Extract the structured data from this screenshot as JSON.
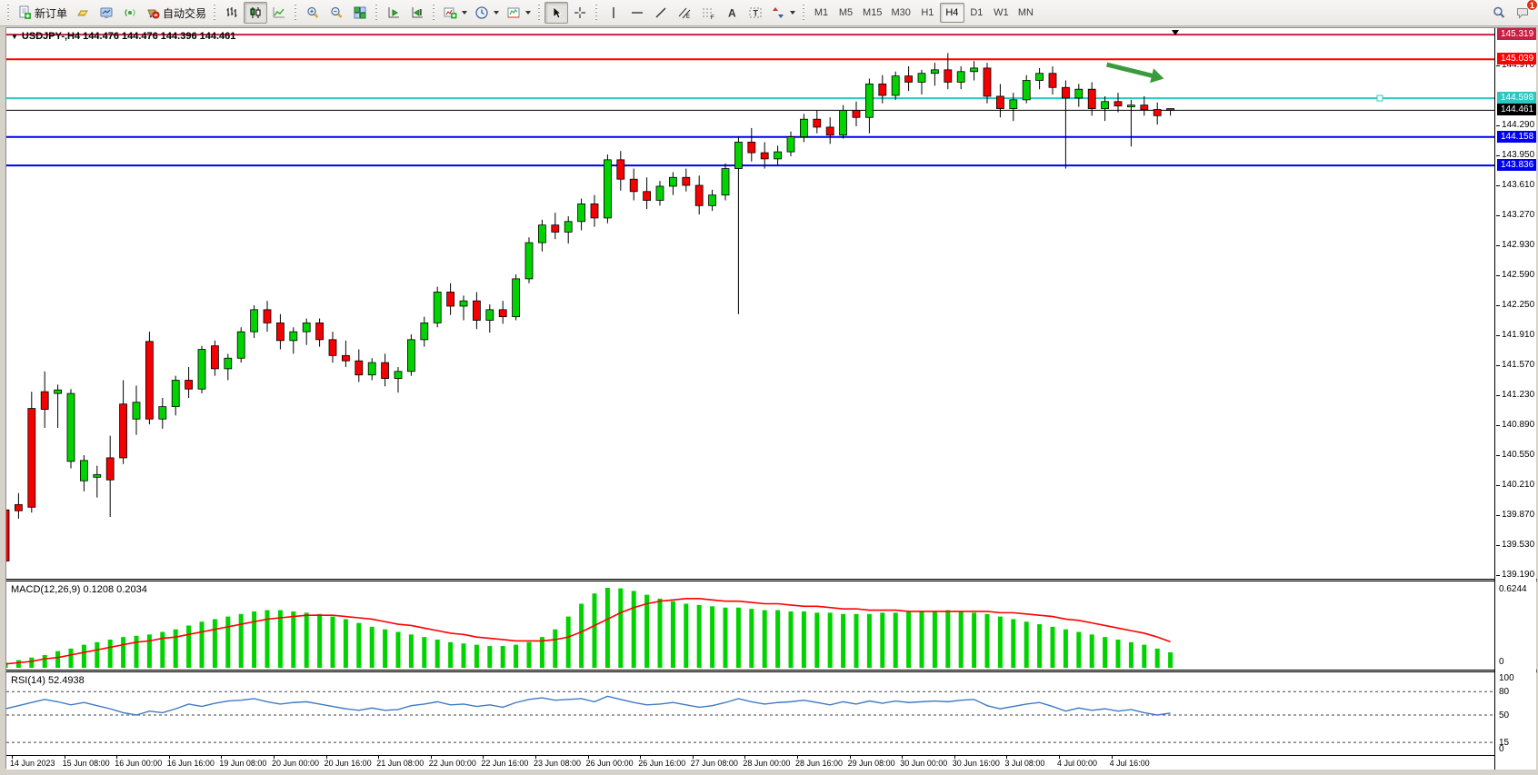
{
  "toolbar": {
    "groups": [
      {
        "name": "trade",
        "items": [
          {
            "icon": "new-order-icon",
            "name": "new-order-button",
            "label": "新订单"
          },
          {
            "icon": "gold-icon",
            "name": "gold-button"
          },
          {
            "icon": "market-watch-icon",
            "name": "market-watch-button"
          },
          {
            "icon": "signals-icon",
            "name": "signals-button"
          },
          {
            "icon": "auto-trading-icon",
            "name": "auto-trading-button",
            "label": "自动交易"
          }
        ]
      },
      {
        "name": "chart-type",
        "items": [
          {
            "icon": "bar-chart-icon",
            "name": "bar-chart-button"
          },
          {
            "icon": "candlestick-icon",
            "name": "candlestick-button",
            "active": true
          },
          {
            "icon": "line-chart-icon",
            "name": "line-chart-button"
          }
        ]
      },
      {
        "name": "zoom",
        "items": [
          {
            "icon": "zoom-in-icon",
            "name": "zoom-in-button"
          },
          {
            "icon": "zoom-out-icon",
            "name": "zoom-out-button"
          },
          {
            "icon": "tile-windows-icon",
            "name": "tile-windows-button"
          }
        ]
      },
      {
        "name": "scroll",
        "items": [
          {
            "icon": "auto-scroll-icon",
            "name": "auto-scroll-button"
          },
          {
            "icon": "chart-shift-icon",
            "name": "chart-shift-button"
          }
        ]
      },
      {
        "name": "new-objects",
        "items": [
          {
            "icon": "new-chart-icon",
            "name": "new-chart-dropdown",
            "dropdown": true
          },
          {
            "icon": "periods-icon",
            "name": "periods-dropdown",
            "dropdown": true
          },
          {
            "icon": "templates-icon",
            "name": "templates-dropdown",
            "dropdown": true
          }
        ]
      },
      {
        "name": "cursor-tools",
        "items": [
          {
            "icon": "cursor-icon",
            "name": "cursor-button",
            "active": true
          },
          {
            "icon": "crosshair-icon",
            "name": "crosshair-button"
          }
        ]
      },
      {
        "name": "draw-tools",
        "items": [
          {
            "icon": "vertical-line-icon",
            "name": "vertical-line-button"
          },
          {
            "icon": "horizontal-line-icon",
            "name": "horizontal-line-button"
          },
          {
            "icon": "trendline-icon",
            "name": "trendline-button"
          },
          {
            "icon": "channel-icon",
            "name": "equidistant-channel-button"
          },
          {
            "icon": "fibonacci-icon",
            "name": "fibonacci-button"
          },
          {
            "icon": "text-icon",
            "name": "text-button"
          },
          {
            "icon": "text-label-icon",
            "name": "text-label-button"
          },
          {
            "icon": "arrows-icon",
            "name": "arrows-dropdown",
            "dropdown": true
          }
        ]
      },
      {
        "name": "timeframes",
        "timeframe_buttons": [
          "M1",
          "M5",
          "M15",
          "M30",
          "H1",
          "H4",
          "D1",
          "W1",
          "MN"
        ],
        "active_timeframe": "H4"
      }
    ],
    "right_items": [
      {
        "icon": "search-icon",
        "name": "search-button"
      },
      {
        "icon": "chat-icon",
        "name": "notifications-button",
        "badge": "1"
      }
    ]
  },
  "chart": {
    "title": "USDJPY-,H4  144.476 144.476 144.396 144.461",
    "symbol": "USDJPY-",
    "timeframe": "H4",
    "open": "144.476",
    "high": "144.476",
    "low": "144.396",
    "close": "144.461",
    "macd_label": "MACD(12,26,9) 0.1208 0.2034",
    "rsi_label": "RSI(14) 52.4938",
    "macd_scale_top": "0.6244",
    "macd_scale_zero": "0",
    "colors": {
      "bull": "#00d300",
      "bear": "#f50000",
      "wick": "#000000",
      "line_crimson": "#c82044",
      "line_red": "#ff0000",
      "line_cyan": "#2cc7c3",
      "line_blue": "#0000f0",
      "line_black": "#000000",
      "macd_hist": "#00d300",
      "macd_signal": "#ff0000",
      "rsi_line": "#3e7bc4",
      "arrow_object": "#3a9b3c"
    }
  },
  "chart_data": {
    "type": "candlestick",
    "title": "USDJPY-,H4  144.476 144.476 144.396 144.461",
    "symbol": "USDJPY-",
    "period": "H4",
    "last_ohlc": {
      "open": 144.476,
      "high": 144.476,
      "low": 144.396,
      "close": 144.461
    },
    "y_axis": {
      "range": [
        139.05,
        145.4
      ],
      "tick_step": 0.34,
      "ticks": [
        "144.970",
        "144.290",
        "143.950",
        "143.610",
        "143.270",
        "142.930",
        "142.590",
        "142.250",
        "141.910",
        "141.570",
        "141.230",
        "140.890",
        "140.550",
        "140.210",
        "139.870",
        "139.530",
        "139.190"
      ],
      "tick_values": [
        144.97,
        144.29,
        143.95,
        143.61,
        143.27,
        142.93,
        142.59,
        142.25,
        141.91,
        141.57,
        141.23,
        140.89,
        140.55,
        140.21,
        139.87,
        139.53,
        139.19
      ]
    },
    "x_axis": {
      "labels": [
        "14 Jun 2023",
        "15 Jun 08:00",
        "16 Jun 00:00",
        "16 Jun 16:00",
        "19 Jun 08:00",
        "20 Jun 00:00",
        "20 Jun 16:00",
        "21 Jun 08:00",
        "22 Jun 00:00",
        "22 Jun 16:00",
        "23 Jun 08:00",
        "26 Jun 00:00",
        "26 Jun 16:00",
        "27 Jun 08:00",
        "28 Jun 00:00",
        "28 Jun 16:00",
        "29 Jun 08:00",
        "30 Jun 00:00",
        "30 Jun 16:00",
        "3 Jul 08:00",
        "4 Jul 00:00",
        "4 Jul 16:00"
      ]
    },
    "horizontal_lines": [
      {
        "price": 145.319,
        "label": "145.319",
        "color": "#c82044",
        "width": 2
      },
      {
        "price": 145.039,
        "label": "145.039",
        "color": "#ff0000",
        "width": 2
      },
      {
        "price": 144.598,
        "label": "144.598",
        "color": "#2cc7c3",
        "width": 2,
        "selected": true
      },
      {
        "price": 144.461,
        "label": "144.461",
        "color": "#000000",
        "width": 1,
        "current": true
      },
      {
        "price": 144.158,
        "label": "144.158",
        "color": "#0000f0",
        "width": 2
      },
      {
        "price": 143.836,
        "label": "143.836",
        "color": "#0000f0",
        "width": 2
      }
    ],
    "arrow_object": {
      "x1_bar": 84,
      "price1": 144.98,
      "x2_bar": 88.5,
      "price2": 144.82
    },
    "candles": [
      [
        139.93,
        140.05,
        139.28,
        139.35
      ],
      [
        139.99,
        140.12,
        139.83,
        139.92
      ],
      [
        141.08,
        141.27,
        139.9,
        139.96
      ],
      [
        141.27,
        141.5,
        140.86,
        141.07
      ],
      [
        141.25,
        141.35,
        140.86,
        141.29
      ],
      [
        140.48,
        141.3,
        140.4,
        141.25
      ],
      [
        140.26,
        140.55,
        140.14,
        140.49
      ],
      [
        140.3,
        140.43,
        140.07,
        140.33
      ],
      [
        140.52,
        140.77,
        139.85,
        140.27
      ],
      [
        141.13,
        141.4,
        140.45,
        140.52
      ],
      [
        140.96,
        141.34,
        140.78,
        141.15
      ],
      [
        141.84,
        141.95,
        140.9,
        140.96
      ],
      [
        140.96,
        141.2,
        140.85,
        141.1
      ],
      [
        141.1,
        141.45,
        141.0,
        141.4
      ],
      [
        141.4,
        141.55,
        141.2,
        141.3
      ],
      [
        141.3,
        141.79,
        141.25,
        141.75
      ],
      [
        141.79,
        141.85,
        141.45,
        141.53
      ],
      [
        141.53,
        141.7,
        141.4,
        141.65
      ],
      [
        141.65,
        142.0,
        141.6,
        141.95
      ],
      [
        141.95,
        142.25,
        141.88,
        142.2
      ],
      [
        142.2,
        142.3,
        141.95,
        142.05
      ],
      [
        142.05,
        142.15,
        141.75,
        141.85
      ],
      [
        141.85,
        142.0,
        141.7,
        141.95
      ],
      [
        141.95,
        142.1,
        141.8,
        142.05
      ],
      [
        142.05,
        142.1,
        141.78,
        141.86
      ],
      [
        141.86,
        141.95,
        141.6,
        141.68
      ],
      [
        141.68,
        141.85,
        141.55,
        141.62
      ],
      [
        141.62,
        141.75,
        141.38,
        141.46
      ],
      [
        141.46,
        141.65,
        141.4,
        141.6
      ],
      [
        141.6,
        141.7,
        141.33,
        141.42
      ],
      [
        141.42,
        141.55,
        141.26,
        141.5
      ],
      [
        141.5,
        141.92,
        141.45,
        141.86
      ],
      [
        141.86,
        142.12,
        141.78,
        142.05
      ],
      [
        142.05,
        142.46,
        142.0,
        142.4
      ],
      [
        142.4,
        142.5,
        142.14,
        142.24
      ],
      [
        142.24,
        142.36,
        142.08,
        142.3
      ],
      [
        142.3,
        142.4,
        141.98,
        142.08
      ],
      [
        142.08,
        142.26,
        141.94,
        142.2
      ],
      [
        142.2,
        142.3,
        142.04,
        142.12
      ],
      [
        142.12,
        142.6,
        142.08,
        142.55
      ],
      [
        142.55,
        143.02,
        142.5,
        142.96
      ],
      [
        142.96,
        143.22,
        142.86,
        143.16
      ],
      [
        143.16,
        143.3,
        143.0,
        143.08
      ],
      [
        143.08,
        143.26,
        142.95,
        143.2
      ],
      [
        143.2,
        143.46,
        143.1,
        143.4
      ],
      [
        143.4,
        143.5,
        143.14,
        143.24
      ],
      [
        143.24,
        143.96,
        143.18,
        143.9
      ],
      [
        143.9,
        144.0,
        143.55,
        143.68
      ],
      [
        143.68,
        143.8,
        143.44,
        143.54
      ],
      [
        143.54,
        143.7,
        143.34,
        143.44
      ],
      [
        143.44,
        143.66,
        143.38,
        143.6
      ],
      [
        143.6,
        143.76,
        143.5,
        143.7
      ],
      [
        143.7,
        143.8,
        143.54,
        143.61
      ],
      [
        143.61,
        143.72,
        143.28,
        143.38
      ],
      [
        143.38,
        143.56,
        143.32,
        143.5
      ],
      [
        143.5,
        143.86,
        143.44,
        143.8
      ],
      [
        143.8,
        144.16,
        142.15,
        144.1
      ],
      [
        144.1,
        144.26,
        143.88,
        143.98
      ],
      [
        143.98,
        144.1,
        143.8,
        143.91
      ],
      [
        143.91,
        144.06,
        143.84,
        143.99
      ],
      [
        143.99,
        144.22,
        143.94,
        144.16
      ],
      [
        144.16,
        144.42,
        144.1,
        144.36
      ],
      [
        144.36,
        144.46,
        144.2,
        144.27
      ],
      [
        144.27,
        144.38,
        144.08,
        144.18
      ],
      [
        144.18,
        144.52,
        144.14,
        144.46
      ],
      [
        144.46,
        144.56,
        144.28,
        144.38
      ],
      [
        144.38,
        144.82,
        144.2,
        144.76
      ],
      [
        144.76,
        144.86,
        144.54,
        144.63
      ],
      [
        144.63,
        144.9,
        144.58,
        144.85
      ],
      [
        144.85,
        144.96,
        144.68,
        144.78
      ],
      [
        144.78,
        144.92,
        144.64,
        144.88
      ],
      [
        144.88,
        145.0,
        144.74,
        144.92
      ],
      [
        144.92,
        145.11,
        144.7,
        144.78
      ],
      [
        144.78,
        144.96,
        144.7,
        144.9
      ],
      [
        144.9,
        145.02,
        144.8,
        144.94
      ],
      [
        144.94,
        145.0,
        144.54,
        144.62
      ],
      [
        144.62,
        144.76,
        144.38,
        144.48
      ],
      [
        144.48,
        144.66,
        144.34,
        144.58
      ],
      [
        144.58,
        144.86,
        144.54,
        144.8
      ],
      [
        144.8,
        144.94,
        144.7,
        144.88
      ],
      [
        144.88,
        144.96,
        144.64,
        144.72
      ],
      [
        144.72,
        144.8,
        143.8,
        144.6
      ],
      [
        144.6,
        144.76,
        144.5,
        144.7
      ],
      [
        144.7,
        144.78,
        144.4,
        144.48
      ],
      [
        144.48,
        144.62,
        144.34,
        144.56
      ],
      [
        144.56,
        144.66,
        144.44,
        144.51
      ],
      [
        144.5,
        144.58,
        144.05,
        144.52
      ],
      [
        144.52,
        144.62,
        144.4,
        144.47
      ],
      [
        144.47,
        144.55,
        144.3,
        144.4
      ],
      [
        144.48,
        144.48,
        144.4,
        144.46
      ]
    ],
    "indicators": [
      {
        "name": "MACD",
        "params": "12,26,9",
        "label": "MACD(12,26,9) 0.1208 0.2034",
        "current_histogram": 0.1208,
        "current_signal": 0.2034,
        "scale_max": 0.6244,
        "scale_min": 0,
        "histogram": [
          0.04,
          0.06,
          0.08,
          0.1,
          0.13,
          0.15,
          0.18,
          0.2,
          0.22,
          0.24,
          0.25,
          0.26,
          0.28,
          0.3,
          0.33,
          0.36,
          0.38,
          0.4,
          0.42,
          0.44,
          0.45,
          0.45,
          0.44,
          0.43,
          0.42,
          0.4,
          0.38,
          0.35,
          0.32,
          0.3,
          0.28,
          0.26,
          0.24,
          0.22,
          0.2,
          0.19,
          0.18,
          0.17,
          0.17,
          0.18,
          0.2,
          0.24,
          0.3,
          0.4,
          0.5,
          0.58,
          0.6244,
          0.62,
          0.6,
          0.57,
          0.54,
          0.52,
          0.5,
          0.49,
          0.48,
          0.47,
          0.47,
          0.46,
          0.45,
          0.45,
          0.44,
          0.44,
          0.43,
          0.43,
          0.42,
          0.42,
          0.42,
          0.43,
          0.43,
          0.44,
          0.44,
          0.44,
          0.45,
          0.44,
          0.43,
          0.42,
          0.4,
          0.38,
          0.36,
          0.34,
          0.32,
          0.3,
          0.28,
          0.26,
          0.24,
          0.22,
          0.2,
          0.18,
          0.15,
          0.1208
        ],
        "signal": [
          0.03,
          0.04,
          0.05,
          0.07,
          0.08,
          0.1,
          0.12,
          0.14,
          0.16,
          0.18,
          0.2,
          0.21,
          0.23,
          0.24,
          0.26,
          0.28,
          0.3,
          0.32,
          0.34,
          0.36,
          0.38,
          0.39,
          0.4,
          0.41,
          0.41,
          0.41,
          0.4,
          0.39,
          0.38,
          0.36,
          0.34,
          0.33,
          0.31,
          0.29,
          0.27,
          0.26,
          0.24,
          0.23,
          0.22,
          0.21,
          0.21,
          0.21,
          0.22,
          0.24,
          0.28,
          0.33,
          0.38,
          0.43,
          0.47,
          0.5,
          0.52,
          0.53,
          0.54,
          0.54,
          0.53,
          0.52,
          0.52,
          0.51,
          0.5,
          0.5,
          0.49,
          0.48,
          0.48,
          0.47,
          0.46,
          0.46,
          0.45,
          0.45,
          0.45,
          0.44,
          0.44,
          0.44,
          0.44,
          0.44,
          0.44,
          0.44,
          0.43,
          0.43,
          0.42,
          0.41,
          0.4,
          0.38,
          0.37,
          0.35,
          0.33,
          0.31,
          0.29,
          0.27,
          0.24,
          0.2034
        ]
      },
      {
        "name": "RSI",
        "params": "14",
        "label": "RSI(14) 52.4938",
        "current_value": 52.4938,
        "levels": [
          80,
          50,
          15
        ],
        "scale_labels": [
          "100",
          "80",
          "50",
          "15",
          "0"
        ],
        "scale": [
          0,
          100
        ],
        "values": [
          58,
          62,
          66,
          70,
          67,
          63,
          66,
          62,
          58,
          53,
          50,
          55,
          53,
          58,
          64,
          61,
          65,
          68,
          69,
          71,
          67,
          64,
          66,
          67,
          64,
          61,
          58,
          56,
          59,
          56,
          57,
          62,
          64,
          67,
          63,
          64,
          61,
          63,
          60,
          66,
          70,
          72,
          69,
          70,
          71,
          67,
          74,
          70,
          66,
          63,
          64,
          66,
          63,
          60,
          62,
          66,
          71,
          67,
          64,
          66,
          67,
          69,
          66,
          63,
          67,
          64,
          68,
          65,
          68,
          66,
          67,
          68,
          67,
          69,
          70,
          62,
          58,
          61,
          64,
          66,
          61,
          55,
          59,
          56,
          58,
          55,
          57,
          53,
          50,
          52.49
        ]
      }
    ]
  }
}
